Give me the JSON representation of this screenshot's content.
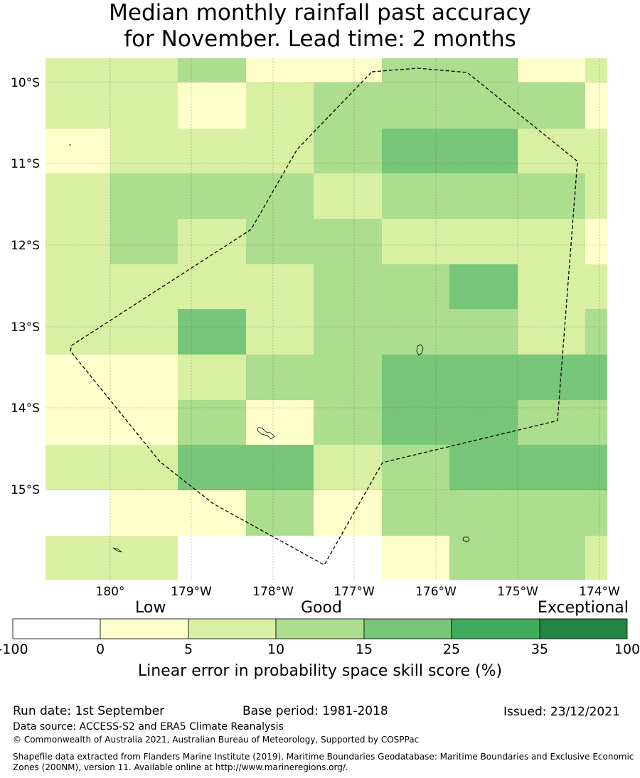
{
  "title": {
    "line1": "Median monthly rainfall past accuracy",
    "line2": "for November. Lead time: 2 months"
  },
  "map": {
    "lon_ticks": [
      "180°",
      "179°W",
      "178°W",
      "177°W",
      "176°W",
      "175°W",
      "174°W"
    ],
    "lat_ticks": [
      "10°S",
      "11°S",
      "12°S",
      "13°S",
      "14°S",
      "15°S"
    ],
    "colors": [
      "#ffffff",
      "#ffffcc",
      "#d9f0a3",
      "#addd8e",
      "#78c679",
      "#41ab5d",
      "#238443"
    ],
    "grid": [
      [
        2,
        2,
        3,
        1,
        1,
        3,
        3,
        1,
        2,
        1
      ],
      [
        2,
        2,
        1,
        2,
        3,
        3,
        3,
        3,
        1,
        2
      ],
      [
        1,
        2,
        2,
        2,
        3,
        4,
        4,
        2,
        2,
        2
      ],
      [
        2,
        3,
        3,
        3,
        2,
        3,
        3,
        3,
        2,
        3
      ],
      [
        2,
        3,
        2,
        3,
        3,
        2,
        2,
        2,
        1,
        1
      ],
      [
        2,
        2,
        2,
        2,
        3,
        3,
        4,
        2,
        2,
        2
      ],
      [
        2,
        2,
        4,
        2,
        3,
        3,
        3,
        2,
        3,
        3
      ],
      [
        1,
        1,
        2,
        3,
        3,
        4,
        4,
        4,
        4,
        3
      ],
      [
        1,
        1,
        3,
        1,
        3,
        4,
        4,
        3,
        3,
        4
      ],
      [
        2,
        2,
        4,
        4,
        2,
        3,
        4,
        4,
        4,
        4
      ],
      [
        0,
        1,
        1,
        3,
        1,
        3,
        3,
        3,
        3,
        4
      ],
      [
        2,
        2,
        0,
        0,
        0,
        1,
        3,
        3,
        2,
        4
      ]
    ]
  },
  "legend": {
    "categories": [
      "Low",
      "Good",
      "Exceptional"
    ],
    "ticks": [
      "-100",
      "0",
      "5",
      "10",
      "15",
      "25",
      "35",
      "100"
    ],
    "colors": [
      "#ffffff",
      "#ffffcc",
      "#d9f0a3",
      "#addd8e",
      "#78c679",
      "#41ab5d",
      "#238443"
    ],
    "label": "Linear error in probability space skill score (%)"
  },
  "footer": {
    "run_date": "Run date: 1st September",
    "base_period": "Base period: 1981-2018",
    "issued": "Issued: 23/12/2021",
    "data_source": "Data source: ACCESS-S2 and ERA5 Climate Reanalysis",
    "copyright": "© Commonwealth of Australia 2021, Australian Bureau of Meteorology, Supported by COSPPac",
    "shapefile_line1": "Shapefile data extracted from Flanders Marine Institute (2019), Maritime Boundaries Geodatabase: Maritime Boundaries and Exclusive Economic",
    "shapefile_line2": "Zones (200NM), version 11. Available online at http://www.marineregions.org/."
  }
}
